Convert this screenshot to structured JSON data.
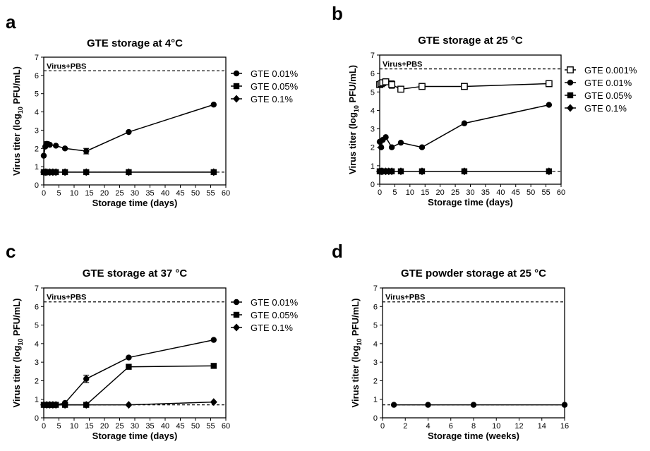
{
  "chart_data": [
    {
      "panel": "a",
      "type": "line",
      "title": "GTE storage at 4°C",
      "xlabel": "Storage time (days)",
      "ylabel_parts": [
        "Virus titer (log",
        "10",
        " PFU/mL)"
      ],
      "xlim": [
        0,
        60
      ],
      "ylim": [
        0,
        7
      ],
      "xticks": [
        0,
        5,
        10,
        15,
        20,
        25,
        30,
        35,
        40,
        45,
        50,
        55,
        60
      ],
      "yticks": [
        0,
        1,
        2,
        3,
        4,
        5,
        6,
        7
      ],
      "reference": {
        "label": "Virus+PBS",
        "y": 6.25
      },
      "detection_limit": 0.7,
      "legend_position": "right",
      "series": [
        {
          "name": "GTE 0.01%",
          "marker": "circle",
          "points": [
            [
              0,
              1.6
            ],
            [
              0.5,
              2.1
            ],
            [
              1,
              2.25
            ],
            [
              2,
              2.2
            ],
            [
              4,
              2.15
            ],
            [
              7,
              2.0
            ],
            [
              14,
              1.85
            ],
            [
              28,
              2.9
            ],
            [
              56,
              4.4
            ]
          ],
          "errors": [
            [
              1,
              0.12
            ],
            [
              14,
              0.15
            ]
          ]
        },
        {
          "name": "GTE 0.05%",
          "marker": "square",
          "points": [
            [
              0,
              0.7
            ],
            [
              0.5,
              0.7
            ],
            [
              1,
              0.7
            ],
            [
              2,
              0.7
            ],
            [
              3,
              0.7
            ],
            [
              4,
              0.7
            ],
            [
              7,
              0.7
            ],
            [
              14,
              0.7
            ],
            [
              28,
              0.7
            ],
            [
              56,
              0.7
            ]
          ]
        },
        {
          "name": "GTE 0.1%",
          "marker": "diamond",
          "points": [
            [
              0,
              0.7
            ],
            [
              0.5,
              0.7
            ],
            [
              1,
              0.7
            ],
            [
              2,
              0.7
            ],
            [
              3,
              0.7
            ],
            [
              4,
              0.7
            ],
            [
              7,
              0.7
            ],
            [
              14,
              0.7
            ],
            [
              28,
              0.7
            ],
            [
              56,
              0.7
            ]
          ]
        }
      ]
    },
    {
      "panel": "b",
      "type": "line",
      "title": "GTE storage at 25 °C",
      "xlabel": "Storage time (days)",
      "ylabel_parts": [
        "Virus titer (log",
        "10",
        " PFU/mL)"
      ],
      "xlim": [
        0,
        60
      ],
      "ylim": [
        0,
        7
      ],
      "xticks": [
        0,
        5,
        10,
        15,
        20,
        25,
        30,
        35,
        40,
        45,
        50,
        55,
        60
      ],
      "yticks": [
        0,
        1,
        2,
        3,
        4,
        5,
        6,
        7
      ],
      "reference": {
        "label": "Virus+PBS",
        "y": 6.25
      },
      "detection_limit": 0.7,
      "legend_position": "right",
      "series": [
        {
          "name": "GTE 0.001%",
          "marker": "square-open",
          "points": [
            [
              0,
              5.4
            ],
            [
              0.5,
              5.45
            ],
            [
              1,
              5.5
            ],
            [
              2,
              5.55
            ],
            [
              4,
              5.4
            ],
            [
              7,
              5.15
            ],
            [
              14,
              5.3
            ],
            [
              28,
              5.3
            ],
            [
              56,
              5.45
            ]
          ],
          "errors": [
            [
              4,
              0.2
            ],
            [
              14,
              0.15
            ]
          ]
        },
        {
          "name": "GTE 0.01%",
          "marker": "circle",
          "points": [
            [
              0,
              2.3
            ],
            [
              0.5,
              2.0
            ],
            [
              1,
              2.4
            ],
            [
              2,
              2.55
            ],
            [
              4,
              2.0
            ],
            [
              7,
              2.25
            ],
            [
              14,
              2.0
            ],
            [
              28,
              3.3
            ],
            [
              56,
              4.3
            ]
          ]
        },
        {
          "name": "GTE 0.05%",
          "marker": "square",
          "points": [
            [
              0,
              0.7
            ],
            [
              0.5,
              0.7
            ],
            [
              1,
              0.7
            ],
            [
              2,
              0.7
            ],
            [
              3,
              0.7
            ],
            [
              4,
              0.7
            ],
            [
              7,
              0.7
            ],
            [
              14,
              0.7
            ],
            [
              28,
              0.7
            ],
            [
              56,
              0.7
            ]
          ]
        },
        {
          "name": "GTE 0.1%",
          "marker": "diamond",
          "points": [
            [
              0,
              0.7
            ],
            [
              0.5,
              0.7
            ],
            [
              1,
              0.7
            ],
            [
              2,
              0.7
            ],
            [
              3,
              0.7
            ],
            [
              4,
              0.7
            ],
            [
              7,
              0.7
            ],
            [
              14,
              0.7
            ],
            [
              28,
              0.7
            ],
            [
              56,
              0.7
            ]
          ]
        }
      ]
    },
    {
      "panel": "c",
      "type": "line",
      "title": "GTE storage at 37 °C",
      "xlabel": "Storage time (days)",
      "ylabel_parts": [
        "Virus titer (log",
        "10",
        " PFU/mL)"
      ],
      "xlim": [
        0,
        60
      ],
      "ylim": [
        0,
        7
      ],
      "xticks": [
        0,
        5,
        10,
        15,
        20,
        25,
        30,
        35,
        40,
        45,
        50,
        55,
        60
      ],
      "yticks": [
        0,
        1,
        2,
        3,
        4,
        5,
        6,
        7
      ],
      "reference": {
        "label": "Virus+PBS",
        "y": 6.25
      },
      "detection_limit": 0.7,
      "legend_position": "right",
      "series": [
        {
          "name": "GTE 0.01%",
          "marker": "circle",
          "points": [
            [
              0,
              0.7
            ],
            [
              1,
              0.7
            ],
            [
              2,
              0.7
            ],
            [
              3,
              0.7
            ],
            [
              4,
              0.7
            ],
            [
              7,
              0.8
            ],
            [
              14,
              2.1
            ],
            [
              28,
              3.25
            ],
            [
              56,
              4.2
            ]
          ],
          "errors": [
            [
              14,
              0.2
            ]
          ]
        },
        {
          "name": "GTE 0.05%",
          "marker": "square",
          "points": [
            [
              0,
              0.7
            ],
            [
              1,
              0.7
            ],
            [
              2,
              0.7
            ],
            [
              3,
              0.7
            ],
            [
              4,
              0.7
            ],
            [
              7,
              0.7
            ],
            [
              14,
              0.7
            ],
            [
              28,
              2.75
            ],
            [
              56,
              2.8
            ]
          ]
        },
        {
          "name": "GTE 0.1%",
          "marker": "diamond",
          "points": [
            [
              0,
              0.7
            ],
            [
              1,
              0.7
            ],
            [
              2,
              0.7
            ],
            [
              3,
              0.7
            ],
            [
              4,
              0.7
            ],
            [
              7,
              0.7
            ],
            [
              14,
              0.7
            ],
            [
              28,
              0.7
            ],
            [
              56,
              0.85
            ]
          ]
        }
      ]
    },
    {
      "panel": "d",
      "type": "line",
      "title": "GTE powder storage at 25 °C",
      "xlabel": "Storage time (weeks)",
      "ylabel_parts": [
        "Virus titer (log",
        "10",
        " PFU/mL)"
      ],
      "xlim": [
        0,
        16
      ],
      "ylim": [
        0,
        7
      ],
      "xticks": [
        0,
        2,
        4,
        6,
        8,
        10,
        12,
        14,
        16
      ],
      "yticks": [
        0,
        1,
        2,
        3,
        4,
        5,
        6,
        7
      ],
      "reference": {
        "label": "Virus+PBS",
        "y": 6.25
      },
      "detection_limit": 0.7,
      "legend_position": "none",
      "series": [
        {
          "marker": "circle",
          "points": [
            [
              1,
              0.7
            ],
            [
              4,
              0.7
            ],
            [
              8,
              0.7
            ],
            [
              16,
              0.7
            ]
          ]
        }
      ]
    }
  ]
}
